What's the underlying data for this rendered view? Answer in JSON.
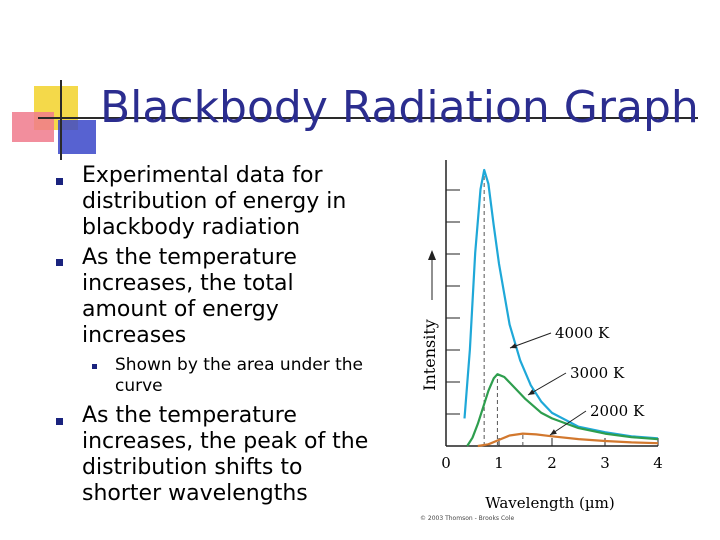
{
  "slide": {
    "title": "Blackbody Radiation Graph",
    "bullets": [
      "Experimental data for distribution of energy in blackbody radiation",
      "As the temperature increases, the total amount of energy increases",
      "Shown by the area under the curve",
      "As the temperature increases, the peak of the distribution shifts to shorter wavelengths"
    ]
  },
  "colors": {
    "title": "#2b2d8f",
    "bullet": "#1a237e",
    "deco_yellow": "#f4d94a",
    "deco_pink": "#f07a8c",
    "deco_blue": "#3a47c9"
  },
  "chart_data": {
    "type": "line",
    "xlabel": "Wavelength (µm)",
    "ylabel": "Intensity",
    "xlim": [
      0,
      4
    ],
    "x_ticks": [
      "0",
      "1",
      "2",
      "3",
      "4"
    ],
    "credit": "© 2003 Thomson - Brooks Cole",
    "grid": false,
    "series": [
      {
        "name": "4000 K",
        "color": "#1fa8d8",
        "peak_x": 0.72,
        "x": [
          0.35,
          0.45,
          0.55,
          0.65,
          0.72,
          0.8,
          0.9,
          1.0,
          1.2,
          1.4,
          1.6,
          1.8,
          2.0,
          2.5,
          3.0,
          3.5,
          4.0
        ],
        "y": [
          0.1,
          0.35,
          0.7,
          0.93,
          1.0,
          0.95,
          0.8,
          0.66,
          0.44,
          0.31,
          0.22,
          0.16,
          0.12,
          0.07,
          0.05,
          0.035,
          0.028
        ]
      },
      {
        "name": "3000 K",
        "color": "#2e9e4e",
        "peak_x": 0.97,
        "x": [
          0.4,
          0.5,
          0.6,
          0.7,
          0.8,
          0.9,
          0.97,
          1.1,
          1.3,
          1.5,
          1.8,
          2.0,
          2.5,
          3.0,
          3.5,
          4.0
        ],
        "y": [
          0.0,
          0.03,
          0.08,
          0.14,
          0.2,
          0.245,
          0.26,
          0.25,
          0.21,
          0.17,
          0.12,
          0.1,
          0.065,
          0.045,
          0.032,
          0.025
        ]
      },
      {
        "name": "2000 K",
        "color": "#d2782e",
        "peak_x": 1.45,
        "x": [
          0.6,
          0.8,
          1.0,
          1.2,
          1.45,
          1.7,
          2.0,
          2.5,
          3.0,
          3.5,
          4.0
        ],
        "y": [
          0.0,
          0.006,
          0.022,
          0.038,
          0.045,
          0.042,
          0.035,
          0.025,
          0.018,
          0.013,
          0.01
        ]
      }
    ],
    "annotations": [
      {
        "text": "4000 K",
        "series": 0
      },
      {
        "text": "3000 K",
        "series": 1
      },
      {
        "text": "2000 K",
        "series": 2
      }
    ]
  }
}
